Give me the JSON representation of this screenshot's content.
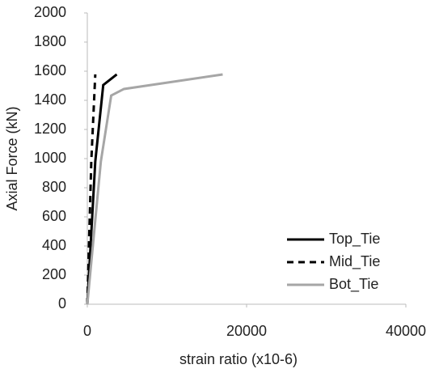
{
  "chart_data": {
    "type": "line",
    "x_label": "strain ratio (x10-6)",
    "y_label": "Axial Force (kN)",
    "xlim": [
      0,
      40000
    ],
    "xticks": [
      0,
      20000,
      40000
    ],
    "ylim": [
      0,
      2000
    ],
    "yticks": [
      0,
      200,
      400,
      600,
      800,
      1000,
      1200,
      1400,
      1600,
      1800,
      2000
    ],
    "grid": false,
    "legend": "lower right",
    "series": [
      {
        "name": "Top_Tie",
        "color": "#000000",
        "dash": "solid",
        "x": [
          0,
          1000,
          2000,
          3700
        ],
        "values": [
          0,
          980,
          1505,
          1578
        ]
      },
      {
        "name": "Mid_Tie",
        "color": "#000000",
        "dash": "dashed",
        "x": [
          0,
          500,
          1000
        ],
        "values": [
          0,
          980,
          1578
        ]
      },
      {
        "name": "Bot_Tie",
        "color": "#a6a6a6",
        "dash": "solid",
        "x": [
          0,
          1700,
          3000,
          4600,
          17000
        ],
        "values": [
          0,
          980,
          1433,
          1478,
          1578
        ]
      }
    ]
  }
}
